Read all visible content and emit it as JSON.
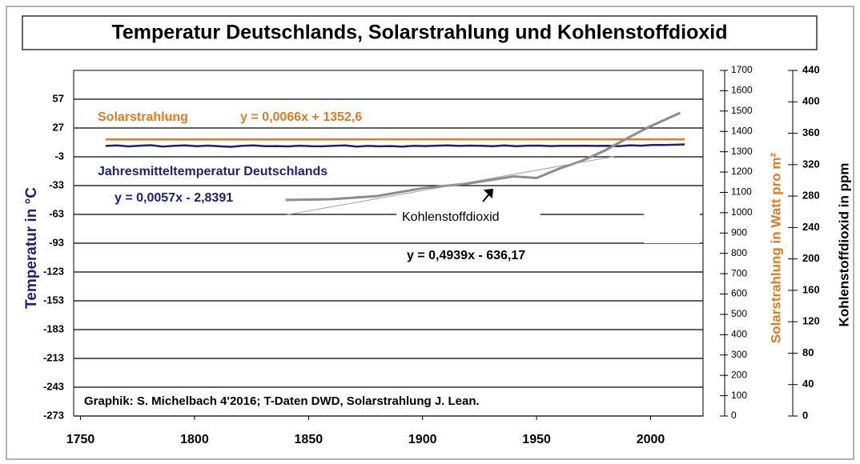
{
  "chart_data": {
    "type": "line",
    "title": "Temperatur Deutschlands, Solarstrahlung und Kohlenstoffdioxid",
    "ylabel": "Temperatur in °C",
    "y2label": "Solarstrahlung in Watt pro m²",
    "y3label": "Kohlenstoffdioxid in ppm",
    "xlim": [
      1747,
      2023
    ],
    "xticks": [
      1750,
      1800,
      1850,
      1900,
      1950,
      2000
    ],
    "ylim": [
      -273,
      87
    ],
    "yticks": [
      -273,
      -243,
      -213,
      -183,
      -153,
      -123,
      -93,
      -63,
      -33,
      -3,
      27,
      57
    ],
    "y2lim": [
      0,
      1700
    ],
    "y2ticks": [
      0,
      100,
      200,
      300,
      400,
      500,
      600,
      700,
      800,
      900,
      1000,
      1100,
      1200,
      1300,
      1400,
      1500,
      1600,
      1700
    ],
    "y3lim": [
      0,
      440
    ],
    "y3ticks": [
      0,
      40,
      80,
      120,
      160,
      200,
      240,
      280,
      320,
      360,
      400,
      440
    ],
    "grid": true,
    "series": [
      {
        "name": "Jahresmitteltemperatur Deutschlands",
        "color": "#1f1f7a",
        "axis": "y",
        "x": [
          1761,
          1766,
          1771,
          1776,
          1781,
          1786,
          1791,
          1796,
          1801,
          1806,
          1811,
          1816,
          1821,
          1826,
          1831,
          1836,
          1841,
          1846,
          1851,
          1856,
          1861,
          1866,
          1871,
          1876,
          1881,
          1886,
          1891,
          1896,
          1901,
          1906,
          1911,
          1916,
          1921,
          1926,
          1931,
          1936,
          1941,
          1946,
          1951,
          1956,
          1961,
          1966,
          1971,
          1976,
          1981,
          1986,
          1991,
          1996,
          2001,
          2006,
          2011,
          2015
        ],
        "values": [
          8.3,
          8.9,
          7.8,
          8.6,
          9.1,
          7.6,
          8.4,
          8.8,
          8.1,
          8.7,
          7.9,
          7.4,
          8.5,
          8.9,
          8.0,
          8.2,
          7.8,
          8.6,
          8.1,
          7.9,
          8.4,
          8.8,
          7.7,
          8.3,
          7.9,
          8.2,
          7.6,
          8.4,
          8.2,
          8.6,
          8.9,
          8.3,
          8.7,
          8.4,
          8.1,
          8.8,
          8.0,
          8.6,
          8.7,
          8.2,
          8.5,
          8.4,
          8.6,
          8.3,
          8.4,
          8.1,
          9.0,
          8.6,
          9.4,
          9.3,
          9.6,
          9.9
        ]
      },
      {
        "name": "Solarstrahlung",
        "color": "#e07b1f",
        "axis": "y2",
        "x": [
          1761,
          1850,
          1950,
          2015
        ],
        "values": [
          1360.6,
          1360.8,
          1361.0,
          1361.2
        ]
      },
      {
        "name": "Kohlenstoffdioxid",
        "color": "#8c8c8c",
        "axis": "y3",
        "x": [
          1840,
          1860,
          1880,
          1900,
          1920,
          1940,
          1950,
          1960,
          1970,
          1980,
          1990,
          2000,
          2013
        ],
        "values": [
          275,
          276,
          280,
          290,
          296,
          305,
          303,
          315,
          325,
          338,
          354,
          369,
          386
        ]
      }
    ],
    "co2_trend": {
      "color": "#a0a0a0",
      "x": [
        1840,
        1985
      ],
      "values": [
        256,
        331
      ]
    },
    "annotations": {
      "solar_eq": "y = 0,0066x + 1352,6",
      "temp_eq": "y = 0,0057x - 2,8391",
      "co2_eq": "y = 0,4939x - 636,17",
      "credit": "Graphik: S. Michelbach 4'2016; T-Daten DWD, Solarstrahlung J. Lean."
    }
  }
}
